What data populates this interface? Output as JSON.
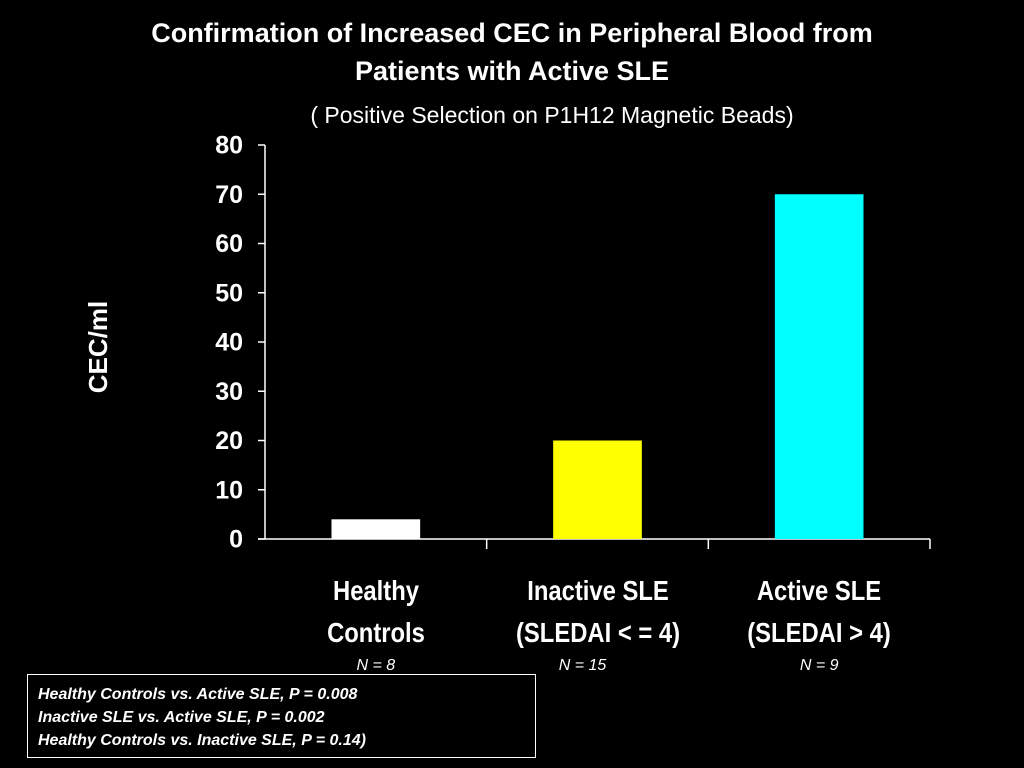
{
  "chart_data": {
    "type": "bar",
    "title": "Confirmation of Increased  CEC in Peripheral Blood from\nPatients with Active SLE",
    "subtitle": "( Positive Selection on P1H12 Magnetic Beads)",
    "y_label": "CEC/ml",
    "categories": [
      "Healthy\nControls",
      "Inactive SLE\n(SLEDAI < = 4)",
      "Active SLE\n(SLEDAI > 4)"
    ],
    "n_labels": [
      "N = 8",
      "N = 15",
      "N = 9"
    ],
    "values": [
      4,
      20,
      70
    ],
    "colors": [
      "#ffffff",
      "#ffff00",
      "#00ffff"
    ],
    "ylim": [
      0,
      80
    ],
    "yticks": [
      0,
      10,
      20,
      30,
      40,
      50,
      60,
      70,
      80
    ],
    "grid": false,
    "notes": [
      "Healthy Controls vs. Active SLE, P = 0.008",
      "Inactive SLE vs. Active SLE, P = 0.002",
      "Healthy Controls vs. Inactive SLE, P = 0.14)"
    ]
  }
}
